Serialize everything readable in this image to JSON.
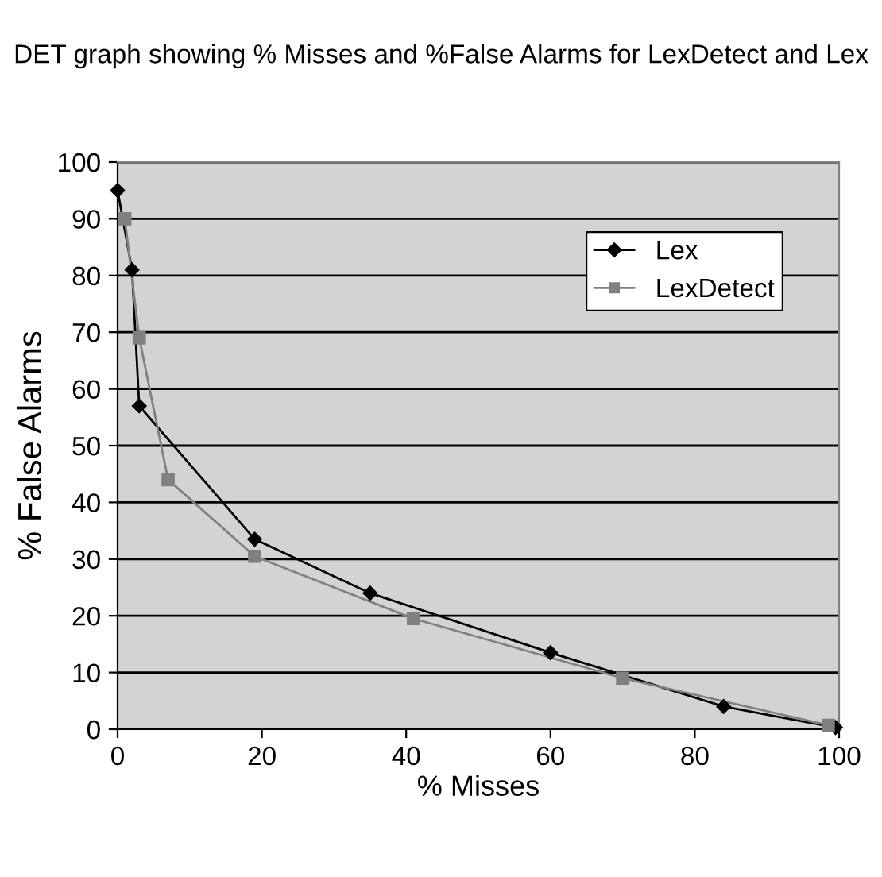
{
  "chart_data": {
    "type": "line",
    "title": "DET graph showing % Misses and %False Alarms for LexDetect and Lex",
    "xlabel": "% Misses",
    "ylabel": "% False Alarms",
    "series": [
      {
        "name": "Lex",
        "color": "#000000",
        "marker": "diamond",
        "x": [
          0,
          2,
          3,
          19,
          35,
          60,
          84,
          99.5
        ],
        "values": [
          95,
          81,
          57,
          33.5,
          24,
          13.5,
          4,
          0.3
        ]
      },
      {
        "name": "LexDetect",
        "color": "#808080",
        "marker": "square",
        "x": [
          1,
          3,
          7,
          19,
          41,
          70,
          98.5
        ],
        "values": [
          90,
          69,
          44,
          30.5,
          19.5,
          9,
          0.7
        ]
      }
    ],
    "xlim": [
      0,
      100
    ],
    "ylim": [
      0,
      100
    ],
    "xticks": [
      0,
      20,
      40,
      60,
      80,
      100
    ],
    "yticks": [
      0,
      10,
      20,
      30,
      40,
      50,
      60,
      70,
      80,
      90,
      100
    ],
    "grid": "y",
    "legend": "top right"
  }
}
